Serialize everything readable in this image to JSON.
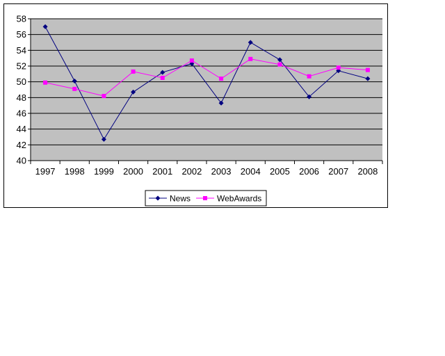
{
  "chart_data": {
    "type": "line",
    "title": "",
    "xlabel": "",
    "ylabel": "",
    "ylim": [
      40,
      58
    ],
    "y_ticks": [
      40,
      42,
      44,
      46,
      48,
      50,
      52,
      54,
      56,
      58
    ],
    "categories": [
      "1997",
      "1998",
      "1999",
      "2000",
      "2001",
      "2002",
      "2003",
      "2004",
      "2005",
      "2006",
      "2007",
      "2008"
    ],
    "grid": true,
    "plot_background": "#c0c0c0",
    "legend_position": "bottom",
    "series": [
      {
        "name": "News",
        "color": "#000080",
        "marker": "diamond",
        "values": [
          57.0,
          50.1,
          42.7,
          48.7,
          51.2,
          52.3,
          47.3,
          55.0,
          52.8,
          48.1,
          51.4,
          50.4
        ]
      },
      {
        "name": "WebAwards",
        "color": "#ff00ff",
        "marker": "square",
        "values": [
          49.9,
          49.1,
          48.2,
          51.3,
          50.5,
          52.7,
          50.4,
          52.9,
          52.2,
          50.7,
          51.8,
          51.5
        ]
      }
    ]
  }
}
